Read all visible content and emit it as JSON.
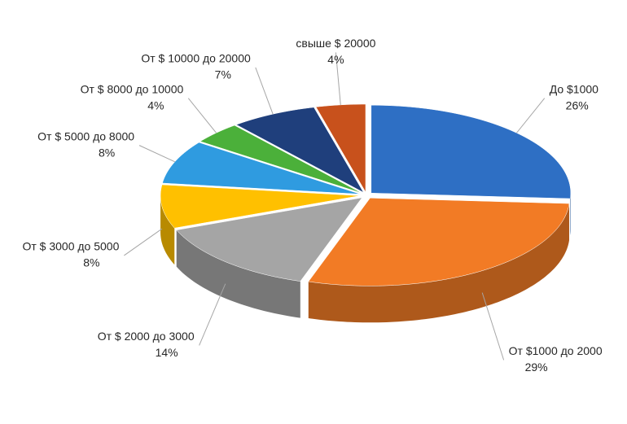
{
  "chart_data": {
    "type": "pie",
    "categories": [
      "До $1000",
      "От $1000 до 2000",
      "От $ 2000 до 3000",
      "От $ 3000 до 5000",
      "От $ 5000 до 8000",
      "От $ 8000 до 10000",
      "От $ 10000 до 20000",
      "свыше $ 20000"
    ],
    "values": [
      26,
      29,
      14,
      8,
      8,
      4,
      7,
      4
    ],
    "value_labels": [
      "26%",
      "29%",
      "14%",
      "8%",
      "8%",
      "4%",
      "7%",
      "4%"
    ],
    "colors": [
      "#2e6fc4",
      "#f27b25",
      "#a5a5a5",
      "#ffc000",
      "#2f9be0",
      "#4bb03a",
      "#1f3f7c",
      "#c8511c"
    ]
  }
}
